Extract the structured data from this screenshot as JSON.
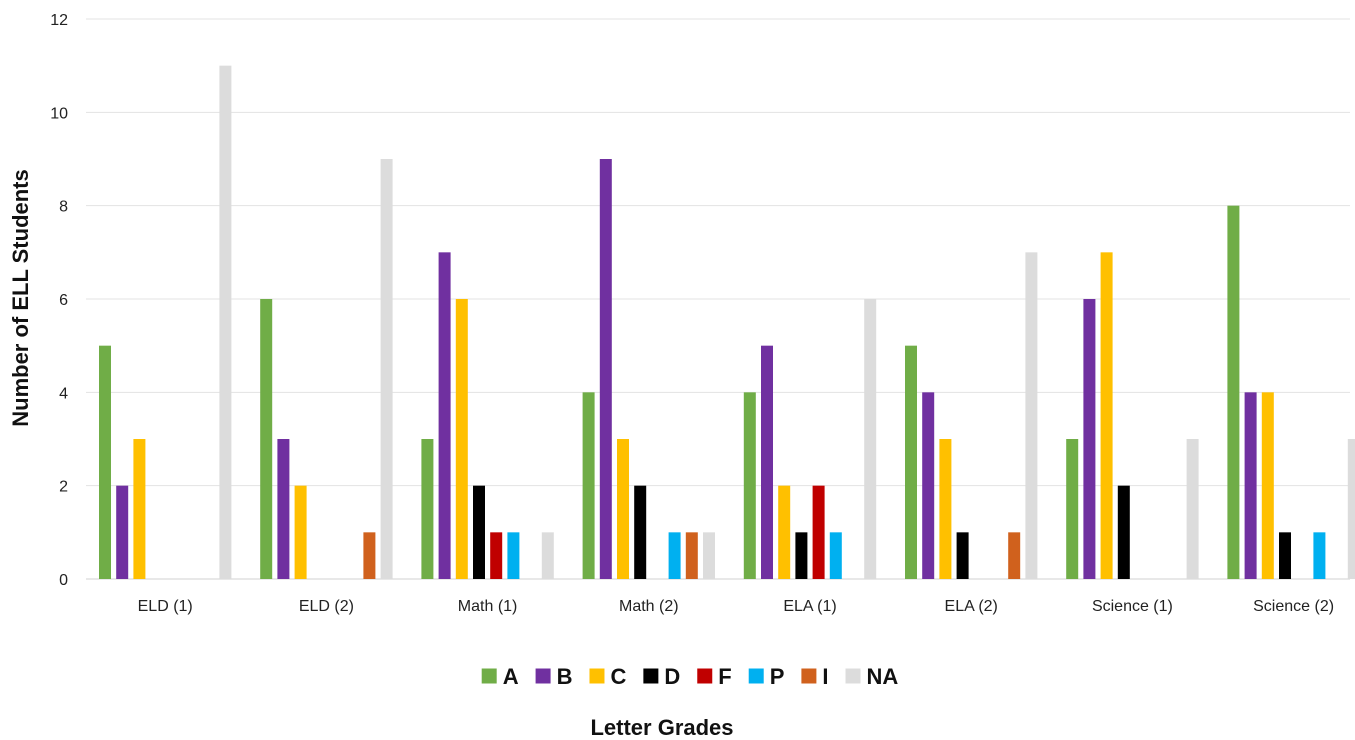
{
  "chart_data": {
    "type": "bar",
    "title": "",
    "xlabel": "Letter Grades",
    "ylabel": "Number of ELL Students",
    "ylim": [
      0,
      12
    ],
    "yticks": [
      0,
      2,
      4,
      6,
      8,
      10,
      12
    ],
    "grid": true,
    "legend_position": "bottom",
    "categories": [
      "ELD (1)",
      "ELD (2)",
      "Math (1)",
      "Math (2)",
      "ELA (1)",
      "ELA (2)",
      "Science (1)",
      "Science (2)"
    ],
    "series": [
      {
        "name": "A",
        "color": "#70ad47",
        "values": [
          5,
          6,
          3,
          4,
          4,
          5,
          3,
          8
        ]
      },
      {
        "name": "B",
        "color": "#7030a0",
        "values": [
          2,
          3,
          7,
          9,
          5,
          4,
          6,
          4
        ]
      },
      {
        "name": "C",
        "color": "#ffc000",
        "values": [
          3,
          2,
          6,
          3,
          2,
          3,
          7,
          4
        ]
      },
      {
        "name": "D",
        "color": "#000000",
        "values": [
          0,
          0,
          2,
          2,
          1,
          1,
          2,
          1
        ]
      },
      {
        "name": "F",
        "color": "#c00000",
        "values": [
          0,
          0,
          1,
          0,
          2,
          0,
          0,
          0
        ]
      },
      {
        "name": "P",
        "color": "#00b0f0",
        "values": [
          0,
          0,
          1,
          1,
          1,
          0,
          0,
          1
        ]
      },
      {
        "name": "I",
        "color": "#d0611d",
        "values": [
          0,
          1,
          0,
          1,
          0,
          1,
          0,
          0
        ]
      },
      {
        "name": "NA",
        "color": "#dcdcdc",
        "values": [
          11,
          9,
          1,
          1,
          6,
          7,
          3,
          3
        ]
      }
    ]
  }
}
